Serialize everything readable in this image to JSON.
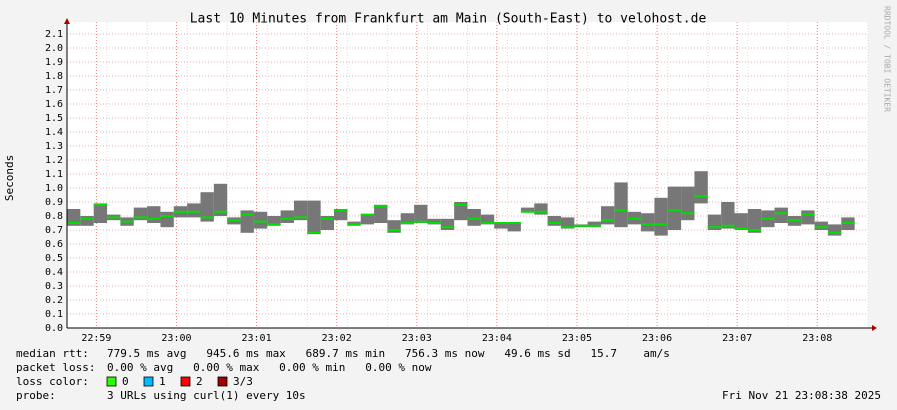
{
  "chart_data": {
    "type": "smokeping",
    "title": "Last 10 Minutes from Frankfurt am Main (South-East) to velohost.de",
    "y_label": "Seconds",
    "side_text": "RRDTOOL / TOBI OETIKER",
    "categories": [
      null,
      null,
      "22:59",
      null,
      null,
      null,
      null,
      null,
      "23:00",
      null,
      null,
      null,
      null,
      null,
      "23:01",
      null,
      null,
      null,
      null,
      null,
      "23:02",
      null,
      null,
      null,
      null,
      null,
      "23:03",
      null,
      null,
      null,
      null,
      null,
      "23:04",
      null,
      null,
      null,
      null,
      null,
      "23:05",
      null,
      null,
      null,
      null,
      null,
      "23:06",
      null,
      null,
      null,
      null,
      null,
      "23:07",
      null,
      null,
      null,
      null,
      null,
      "23:08",
      null,
      null,
      null
    ],
    "series": [
      {
        "name": "median rtt",
        "color": "#00e000",
        "values": [
          0.75,
          0.78,
          0.88,
          0.79,
          0.76,
          0.79,
          0.78,
          0.8,
          0.83,
          0.83,
          0.79,
          0.83,
          0.77,
          0.81,
          0.76,
          0.74,
          0.78,
          0.79,
          0.68,
          0.78,
          0.84,
          0.74,
          0.81,
          0.87,
          0.7,
          0.75,
          0.76,
          0.75,
          0.72,
          0.88,
          0.78,
          0.75,
          0.75,
          0.75,
          0.83,
          0.83,
          0.75,
          0.72,
          0.73,
          0.73,
          0.77,
          0.84,
          0.78,
          0.74,
          0.74,
          0.84,
          0.82,
          0.94,
          0.72,
          0.73,
          0.71,
          0.7,
          0.78,
          0.82,
          0.77,
          0.81,
          0.72,
          0.68,
          0.75,
          null
        ]
      }
    ],
    "range": {
      "color": "#777777",
      "low": [
        0.73,
        0.73,
        0.75,
        0.77,
        0.73,
        0.77,
        0.75,
        0.72,
        0.79,
        0.79,
        0.76,
        0.8,
        0.74,
        0.68,
        0.71,
        0.73,
        0.75,
        0.77,
        0.67,
        0.7,
        0.77,
        0.73,
        0.74,
        0.75,
        0.68,
        0.74,
        0.75,
        0.74,
        0.7,
        0.77,
        0.73,
        0.74,
        0.71,
        0.69,
        0.83,
        0.81,
        0.73,
        0.71,
        0.72,
        0.72,
        0.74,
        0.72,
        0.74,
        0.69,
        0.66,
        0.7,
        0.77,
        0.89,
        0.7,
        0.71,
        0.7,
        0.68,
        0.72,
        0.75,
        0.73,
        0.74,
        0.7,
        0.66,
        0.7,
        null
      ],
      "high": [
        0.85,
        0.8,
        0.89,
        0.81,
        0.79,
        0.86,
        0.87,
        0.83,
        0.87,
        0.89,
        0.97,
        1.03,
        0.79,
        0.84,
        0.83,
        0.8,
        0.84,
        0.91,
        0.91,
        0.8,
        0.85,
        0.76,
        0.81,
        0.88,
        0.77,
        0.82,
        0.88,
        0.78,
        0.78,
        0.9,
        0.85,
        0.81,
        0.75,
        0.75,
        0.86,
        0.89,
        0.8,
        0.79,
        0.74,
        0.76,
        0.87,
        1.04,
        0.83,
        0.82,
        0.93,
        1.01,
        1.01,
        1.12,
        0.81,
        0.9,
        0.82,
        0.85,
        0.84,
        0.86,
        0.8,
        0.84,
        0.76,
        0.74,
        0.79,
        null
      ]
    },
    "ylim": [
      0,
      2.1
    ],
    "yticks": [
      {
        "value": 0,
        "label": "0.0"
      },
      0.1,
      0.2,
      0.3,
      0.4,
      0.5,
      0.6,
      0.7,
      0.8,
      0.9,
      {
        "value": 1,
        "label": "1.0"
      },
      1.1,
      1.2,
      1.3,
      1.4,
      1.5,
      1.6,
      1.7,
      1.8,
      1.9,
      {
        "value": 2,
        "label": "2.0"
      },
      2.1
    ],
    "grid": true,
    "stats": [
      {
        "label": "median rtt:",
        "text": "779.5 ms avg   945.6 ms max   689.7 ms min   756.3 ms now   49.6 ms sd   15.7    am/s"
      },
      {
        "label": "packet loss:",
        "text": "0.00 % avg   0.00 % max   0.00 % min   0.00 % now"
      }
    ],
    "loss_legend": {
      "label": "loss color:",
      "items": [
        {
          "name": "0",
          "color": "#26ff00"
        },
        {
          "name": "1",
          "color": "#00b8ff"
        },
        {
          "name": "2",
          "color": "#ff0000"
        },
        {
          "name": "3/3",
          "color": "#a00000"
        }
      ]
    },
    "probe": {
      "label": "probe:",
      "text": "3 URLs using curl(1) every 10s"
    },
    "timestamp": "Fri Nov 21 23:08:38 2025"
  }
}
